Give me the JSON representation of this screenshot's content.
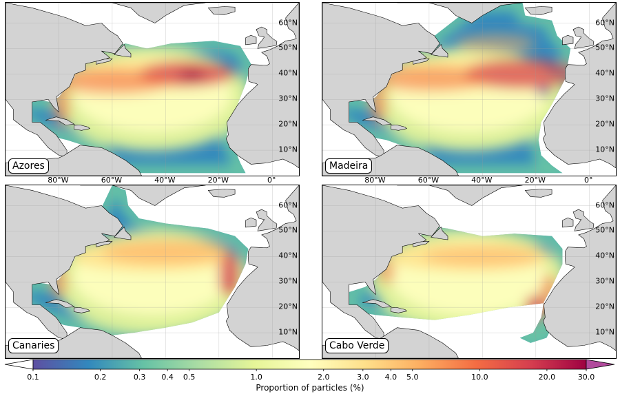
{
  "figure": {
    "panels": [
      {
        "label": "Azores",
        "hotspot": "azores",
        "lon_ticks": [
          "80°W",
          "60°W",
          "40°W",
          "20°W",
          "0°"
        ],
        "lat_ticks": [
          "60°N",
          "50°N",
          "40°N",
          "30°N",
          "20°N",
          "10°N"
        ]
      },
      {
        "label": "Madeira",
        "hotspot": "madeira",
        "lon_ticks": [
          "80°W",
          "60°W",
          "40°W",
          "20°W",
          "0°"
        ],
        "lat_ticks": [
          "60°N",
          "50°N",
          "40°N",
          "30°N",
          "20°N",
          "10°N"
        ]
      },
      {
        "label": "Canaries",
        "hotspot": "canaries",
        "lon_ticks": [],
        "lat_ticks": [
          "60°N",
          "50°N",
          "40°N",
          "30°N",
          "20°N",
          "10°N"
        ]
      },
      {
        "label": "Cabo Verde",
        "hotspot": "caboverde",
        "lon_ticks": [],
        "lat_ticks": [
          "60°N",
          "50°N",
          "40°N",
          "30°N",
          "20°N",
          "10°N"
        ]
      }
    ],
    "colorbar": {
      "label": "Proportion of particles (%)",
      "scale": "log",
      "ticks": [
        "0.1",
        "0.2",
        "0.3",
        "0.4",
        "0.5",
        "1.0",
        "2.0",
        "3.0",
        "4.0",
        "5.0",
        "10.0",
        "20.0",
        "30.0"
      ],
      "colormap": "Spectral_r",
      "colors": [
        "#5e4fa2",
        "#3288bd",
        "#66c2a5",
        "#abdda4",
        "#e6f598",
        "#ffffbf",
        "#fee08b",
        "#fdae61",
        "#f46d43",
        "#d53e4f",
        "#9e0142"
      ]
    },
    "land_color": "#d3d3d3",
    "ocean_color": "#ffffff"
  }
}
